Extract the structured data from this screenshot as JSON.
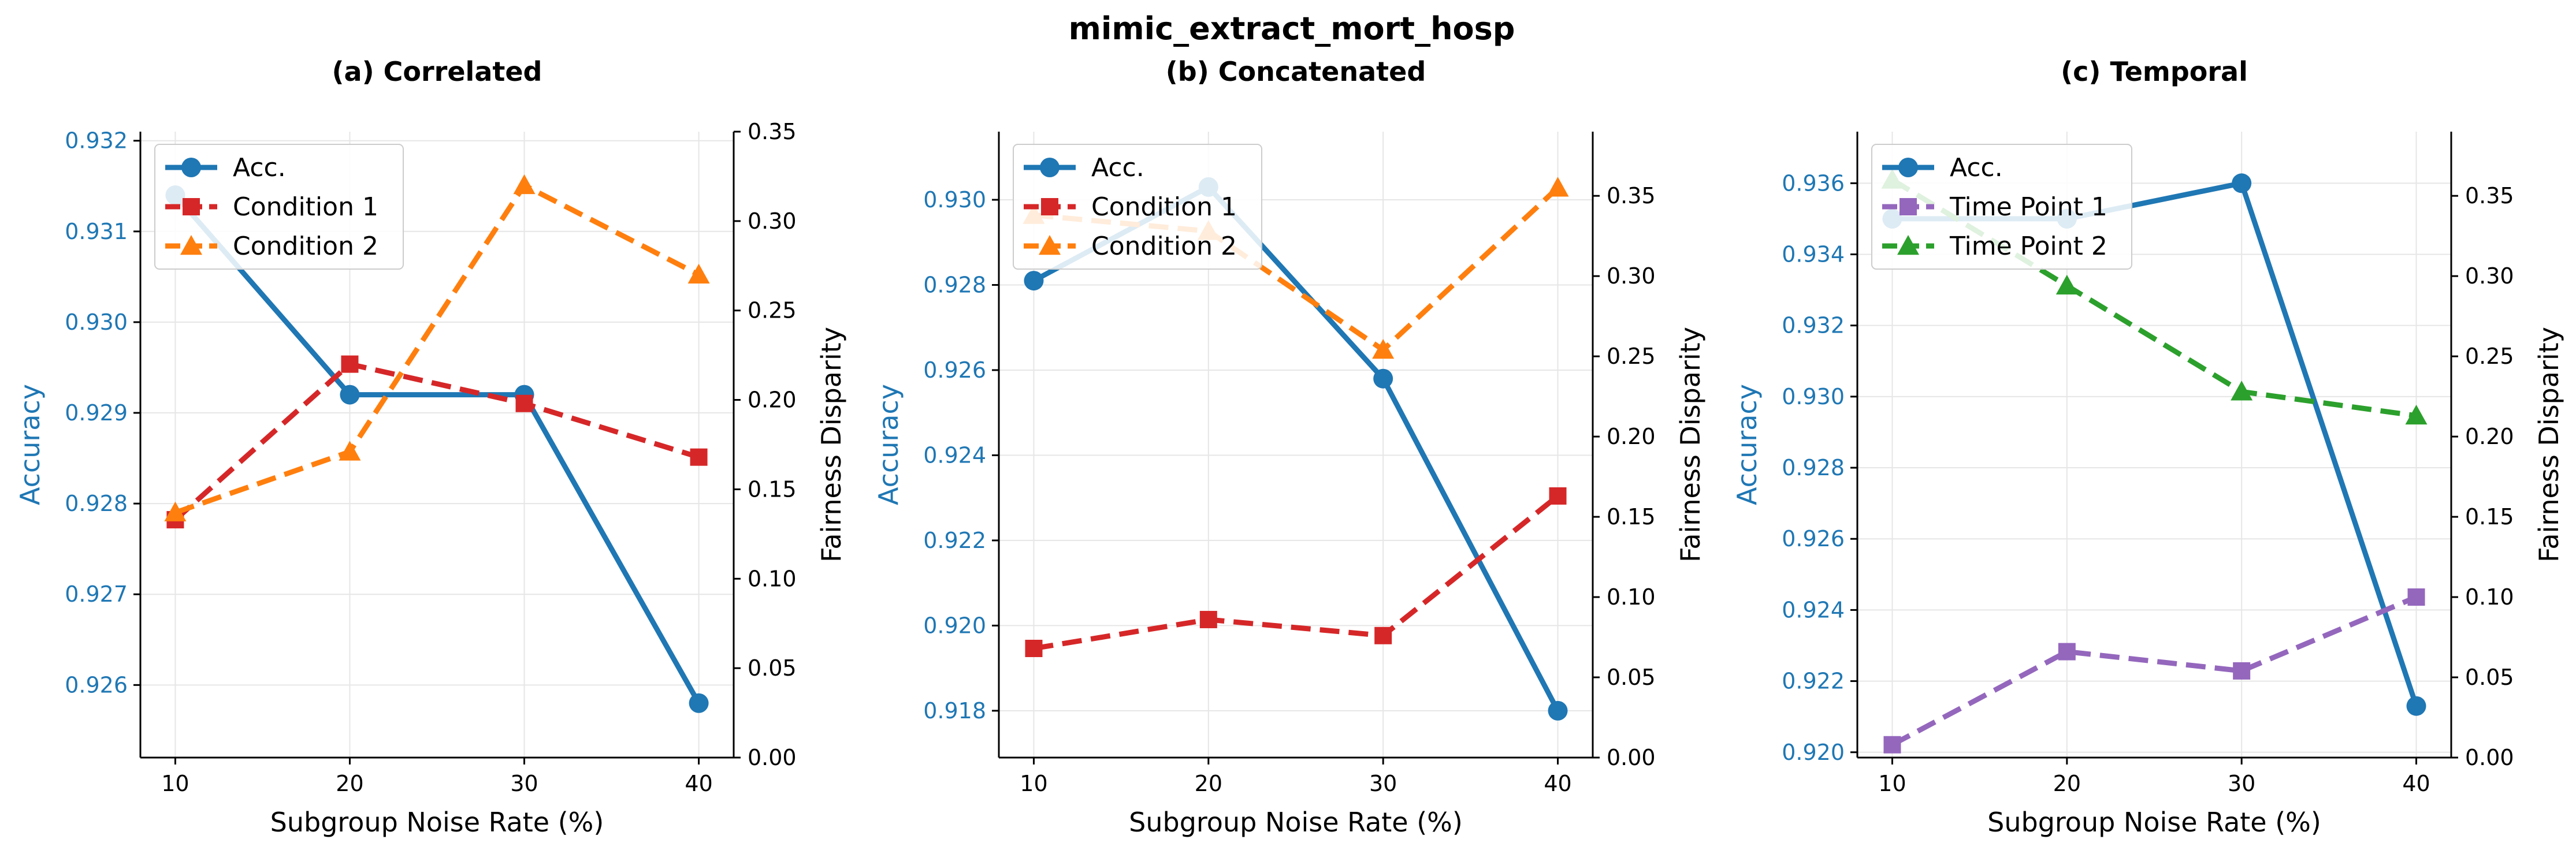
{
  "figure": {
    "suptitle": "mimic_extract_mort_hosp"
  },
  "colors": {
    "accuracy": "#1f77b4",
    "condition1": "#d62728",
    "condition2": "#ff7f0e",
    "timepoint1": "#9467bd",
    "timepoint2": "#2ca02c",
    "grid": "#e6e6e6",
    "axis": "#000000"
  },
  "chart_data": [
    {
      "type": "line",
      "title": "(a) Correlated",
      "xlabel": "Subgroup Noise Rate (%)",
      "ylabel_left": "Accuracy",
      "ylabel_right": "Fairness Disparity",
      "x": [
        10,
        20,
        30,
        40
      ],
      "xlim": [
        8,
        42
      ],
      "ylim_left": [
        0.9252,
        0.9321
      ],
      "ylim_right": [
        0.0,
        0.35
      ],
      "yticks_left": [
        "0.926",
        "0.927",
        "0.928",
        "0.929",
        "0.930",
        "0.931",
        "0.932"
      ],
      "yticks_right": [
        "0.00",
        "0.05",
        "0.10",
        "0.15",
        "0.20",
        "0.25",
        "0.30",
        "0.35"
      ],
      "grid": true,
      "legend_position": "upper-left",
      "series": [
        {
          "name": "Acc.",
          "axis": "left",
          "marker": "circle",
          "dash": false,
          "color_key": "accuracy",
          "values": [
            0.9314,
            0.9292,
            0.9292,
            0.9258
          ]
        },
        {
          "name": "Condition 1",
          "axis": "right",
          "marker": "square",
          "dash": true,
          "color_key": "condition1",
          "values": [
            0.133,
            0.22,
            0.198,
            0.168
          ]
        },
        {
          "name": "Condition 2",
          "axis": "right",
          "marker": "triangle",
          "dash": true,
          "color_key": "condition2",
          "values": [
            0.137,
            0.171,
            0.32,
            0.27
          ]
        }
      ]
    },
    {
      "type": "line",
      "title": "(b) Concatenated",
      "xlabel": "Subgroup Noise Rate (%)",
      "ylabel_left": "Accuracy",
      "ylabel_right": "Fairness Disparity",
      "x": [
        10,
        20,
        30,
        40
      ],
      "xlim": [
        8,
        42
      ],
      "ylim_left": [
        0.9169,
        0.9316
      ],
      "ylim_right": [
        0.0,
        0.39
      ],
      "yticks_left": [
        "0.918",
        "0.920",
        "0.922",
        "0.924",
        "0.926",
        "0.928",
        "0.930"
      ],
      "yticks_right": [
        "0.00",
        "0.05",
        "0.10",
        "0.15",
        "0.20",
        "0.25",
        "0.30",
        "0.35"
      ],
      "grid": true,
      "legend_position": "upper-left",
      "series": [
        {
          "name": "Acc.",
          "axis": "left",
          "marker": "circle",
          "dash": false,
          "color_key": "accuracy",
          "values": [
            0.9281,
            0.9303,
            0.9258,
            0.918
          ]
        },
        {
          "name": "Condition 1",
          "axis": "right",
          "marker": "square",
          "dash": true,
          "color_key": "condition1",
          "values": [
            0.068,
            0.086,
            0.076,
            0.163
          ]
        },
        {
          "name": "Condition 2",
          "axis": "right",
          "marker": "triangle",
          "dash": true,
          "color_key": "condition2",
          "values": [
            0.338,
            0.328,
            0.254,
            0.355
          ]
        }
      ]
    },
    {
      "type": "line",
      "title": "(c) Temporal",
      "xlabel": "Subgroup Noise Rate (%)",
      "ylabel_left": "Accuracy",
      "ylabel_right": "Fairness Disparity",
      "x": [
        10,
        20,
        30,
        40
      ],
      "xlim": [
        8,
        42
      ],
      "ylim_left": [
        0.91985,
        0.93745
      ],
      "ylim_right": [
        0.0,
        0.39
      ],
      "yticks_left": [
        "0.920",
        "0.922",
        "0.924",
        "0.926",
        "0.928",
        "0.930",
        "0.932",
        "0.934",
        "0.936"
      ],
      "yticks_right": [
        "0.00",
        "0.05",
        "0.10",
        "0.15",
        "0.20",
        "0.25",
        "0.30",
        "0.35"
      ],
      "grid": true,
      "legend_position": "upper-left",
      "series": [
        {
          "name": "Acc.",
          "axis": "left",
          "marker": "circle",
          "dash": false,
          "color_key": "accuracy",
          "values": [
            0.935,
            0.935,
            0.936,
            0.9213
          ]
        },
        {
          "name": "Time Point 1",
          "axis": "right",
          "marker": "square",
          "dash": true,
          "color_key": "timepoint1",
          "values": [
            0.008,
            0.066,
            0.054,
            0.1
          ]
        },
        {
          "name": "Time Point 2",
          "axis": "right",
          "marker": "triangle",
          "dash": true,
          "color_key": "timepoint2",
          "values": [
            0.36,
            0.294,
            0.228,
            0.213
          ]
        }
      ]
    }
  ]
}
